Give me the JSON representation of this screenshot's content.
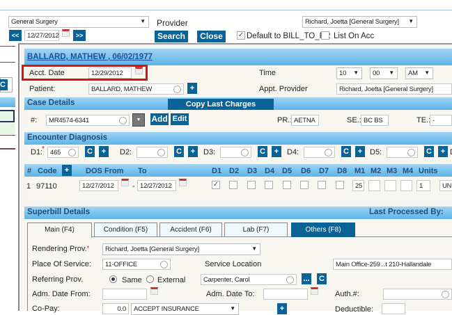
{
  "top": {
    "specialty": "General Surgery",
    "date": "12/27/2012",
    "prev": "<<",
    "next": ">>",
    "provider_label": "Provider",
    "provider": "Richard, Joetta [General Surgery]",
    "search": "Search",
    "close": "Close",
    "default_label": "Default to BILL_TO_PR",
    "list_label": "List On Acc"
  },
  "left": {
    "c_button": "C"
  },
  "patient_header": "BALLARD, MATHEW , 06/02/1977",
  "visit": {
    "acct_label": "Acct. Date",
    "acct_date": "12/29/2012",
    "patient_label": "Patient:",
    "patient": "BALLARD, MATHEW",
    "time_label": "Time",
    "hour": "10",
    "minute": "00",
    "ampm": "AM",
    "appt_label": "Appt. Provider",
    "appt_provider": "Richard, Joetta [General Surgery]"
  },
  "case": {
    "title": "Case Details",
    "copy": "Copy Last Charges",
    "num_label": "#:",
    "case_no": "MR4574-6341",
    "add": "Add",
    "edit": "Edit",
    "pr_label": "PR.:",
    "pr": "AETNA",
    "se_label": "SE.:",
    "se": "BC BS C",
    "te_label": "TE.:",
    "te": "-"
  },
  "diag": {
    "title": "Encounter Diagnosis",
    "items": [
      {
        "label": "D1:",
        "value": "465"
      },
      {
        "label": "D2:",
        "value": ""
      },
      {
        "label": "D3:",
        "value": ""
      },
      {
        "label": "D4:",
        "value": ""
      },
      {
        "label": "D5:",
        "value": ""
      }
    ],
    "c": "C",
    "plus": "+"
  },
  "proc": {
    "headers": [
      "#",
      "Code",
      "DOS From",
      "To",
      "D1",
      "D2",
      "D3",
      "D4",
      "D5",
      "D6",
      "D7",
      "D8",
      "M1",
      "M2",
      "M3",
      "M4",
      "Units"
    ],
    "row": {
      "num": "1",
      "code": "97110",
      "from": "12/27/2012",
      "dash": "-",
      "to": "12/27/2012",
      "d1_checked": true,
      "m1": "25",
      "units": "1",
      "unit_type": "UN"
    }
  },
  "superbill": {
    "title": "Superbill Details",
    "last_processed": "Last Processed By:",
    "tabs": [
      "Main (F4)",
      "Condition (F5)",
      "Accident (F6)",
      "Lab (F7)",
      "Others (F8)"
    ],
    "active_tab": "Main (F4)",
    "rendering_label": "Rendering Prov.",
    "rendering": "Richard, Joetta [General Surgery]",
    "pos_label": "Place Of Service:",
    "pos": "11-OFFICE",
    "loc_label": "Service Location",
    "loc": "Main Office-259...t 210-Hallandale",
    "ref_label": "Referring Prov.",
    "same": "Same",
    "external": "External",
    "ref": "Carpenter, Carol",
    "dots": "...",
    "adm_from_label": "Adm. Date From:",
    "adm_to_label": "Adm. Date To:",
    "auth_label": "Auth.#:",
    "copay_label": "Co-Pay:",
    "copay": "0.0",
    "copay_type": "ACCEPT INSURANCE",
    "deductible_label": "Deductible:"
  }
}
